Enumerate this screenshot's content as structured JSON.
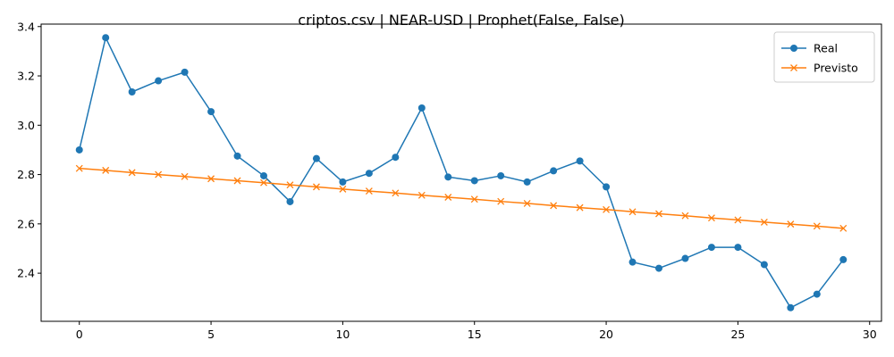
{
  "chart_data": {
    "type": "line",
    "title": "criptos.csv | NEAR-USD | Prophet(False, False)",
    "xlabel": "",
    "ylabel": "",
    "x": [
      0,
      1,
      2,
      3,
      4,
      5,
      6,
      7,
      8,
      9,
      10,
      11,
      12,
      13,
      14,
      15,
      16,
      17,
      18,
      19,
      20,
      21,
      22,
      23,
      24,
      25,
      26,
      27,
      28,
      29
    ],
    "series": [
      {
        "name": "Real",
        "color": "#1f77b4",
        "marker": "circle",
        "values": [
          2.9,
          3.355,
          3.135,
          3.18,
          3.215,
          3.055,
          2.875,
          2.795,
          2.69,
          2.865,
          2.77,
          2.805,
          2.87,
          3.07,
          2.79,
          2.775,
          2.795,
          2.77,
          2.815,
          2.855,
          2.75,
          2.445,
          2.42,
          2.46,
          2.505,
          2.505,
          2.435,
          2.26,
          2.315,
          2.455
        ]
      },
      {
        "name": "Previsto",
        "color": "#ff7f0e",
        "marker": "x",
        "values": [
          2.825,
          2.817,
          2.808,
          2.8,
          2.792,
          2.783,
          2.775,
          2.767,
          2.758,
          2.75,
          2.741,
          2.733,
          2.725,
          2.716,
          2.708,
          2.7,
          2.691,
          2.683,
          2.674,
          2.666,
          2.658,
          2.649,
          2.641,
          2.633,
          2.624,
          2.616,
          2.607,
          2.599,
          2.591,
          2.582
        ]
      }
    ],
    "xlim": [
      -1.45,
      30.45
    ],
    "ylim": [
      2.205,
      3.41
    ],
    "xticks": [
      0,
      5,
      10,
      15,
      20,
      25,
      30
    ],
    "xtick_labels": [
      "0",
      "5",
      "10",
      "15",
      "20",
      "25",
      "30"
    ],
    "yticks": [
      2.4,
      2.6,
      2.8,
      3.0,
      3.2,
      3.4
    ],
    "ytick_labels": [
      "2.4",
      "2.6",
      "2.8",
      "3.0",
      "3.2",
      "3.4"
    ],
    "grid": false,
    "legend_position": "top-right"
  }
}
